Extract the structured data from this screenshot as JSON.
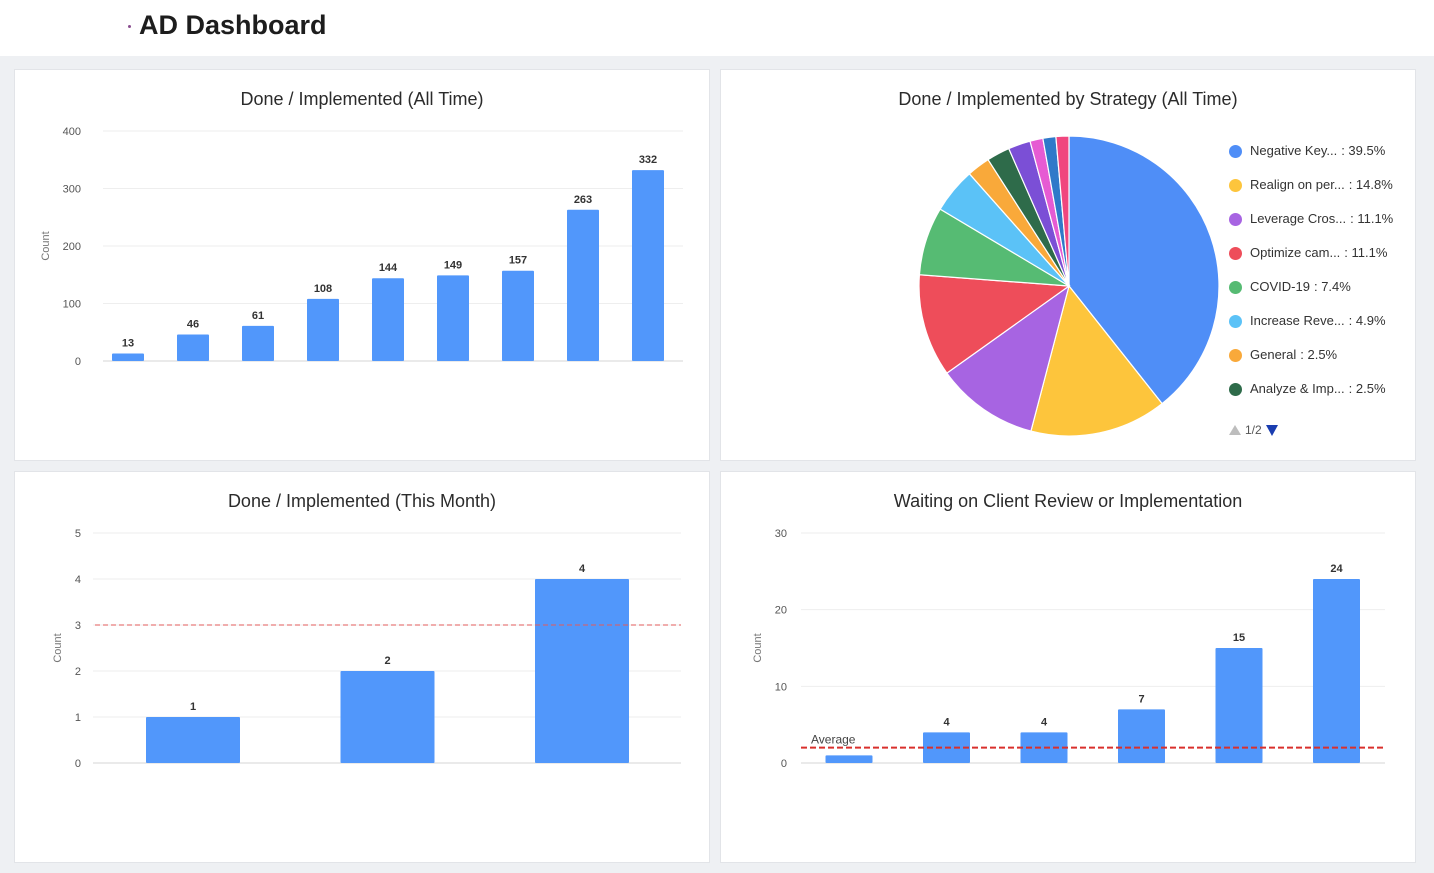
{
  "header": {
    "title": "AD Dashboard"
  },
  "chart_data": [
    {
      "id": "all-time",
      "type": "bar",
      "title": "Done / Implemented (All Time)",
      "ylabel": "Count",
      "ylim": [
        0,
        400
      ],
      "yticks": [
        0,
        100,
        200,
        300,
        400
      ],
      "values": [
        13,
        46,
        61,
        108,
        144,
        149,
        157,
        263,
        332
      ],
      "color": "#5197fb"
    },
    {
      "id": "by-strategy",
      "type": "pie",
      "title": "Done / Implemented by Strategy (All Time)",
      "slices": [
        {
          "label": "Negative Key...",
          "value": 39.5,
          "display": ": 39.5%",
          "color": "#4f8ef7"
        },
        {
          "label": "Realign on per...",
          "value": 14.8,
          "display": ": 14.8%",
          "color": "#fdc53c"
        },
        {
          "label": "Leverage Cros...",
          "value": 11.1,
          "display": ": 11.1%",
          "color": "#a764e2"
        },
        {
          "label": "Optimize cam...",
          "value": 11.1,
          "display": ": 11.1%",
          "color": "#ee4d5a"
        },
        {
          "label": "COVID-19",
          "value": 7.4,
          "display": ": 7.4%",
          "color": "#56bb73"
        },
        {
          "label": "Increase Reve...",
          "value": 4.9,
          "display": ": 4.9%",
          "color": "#5bc2f7"
        },
        {
          "label": "General",
          "value": 2.5,
          "display": ": 2.5%",
          "color": "#f9a93a"
        },
        {
          "label": "Analyze & Imp...",
          "value": 2.5,
          "display": ": 2.5%",
          "color": "#2e6b4a"
        },
        {
          "value": 2.4,
          "color": "#7b4fd6"
        },
        {
          "value": 1.4,
          "color": "#e65bd3"
        },
        {
          "value": 1.4,
          "color": "#2f79c9"
        },
        {
          "value": 1.4,
          "color": "#f0467e"
        }
      ],
      "legend_page": "1/2"
    },
    {
      "id": "this-month",
      "type": "bar",
      "title": "Done / Implemented (This Month)",
      "ylabel": "Count",
      "ylim": [
        0,
        5
      ],
      "yticks": [
        0,
        1,
        2,
        3,
        4,
        5
      ],
      "values": [
        1,
        2,
        4
      ],
      "reference_line": 3,
      "color": "#5197fb"
    },
    {
      "id": "waiting",
      "type": "bar",
      "title": "Waiting on Client Review or Implementation",
      "ylabel": "Count",
      "ylim": [
        0,
        30
      ],
      "yticks": [
        0,
        10,
        20,
        30
      ],
      "values": [
        1,
        4,
        4,
        7,
        15,
        24
      ],
      "labels": [
        "",
        "4",
        "4",
        "7",
        "15",
        "24"
      ],
      "reference_line": 2,
      "reference_label": "Average",
      "color": "#5197fb"
    }
  ]
}
